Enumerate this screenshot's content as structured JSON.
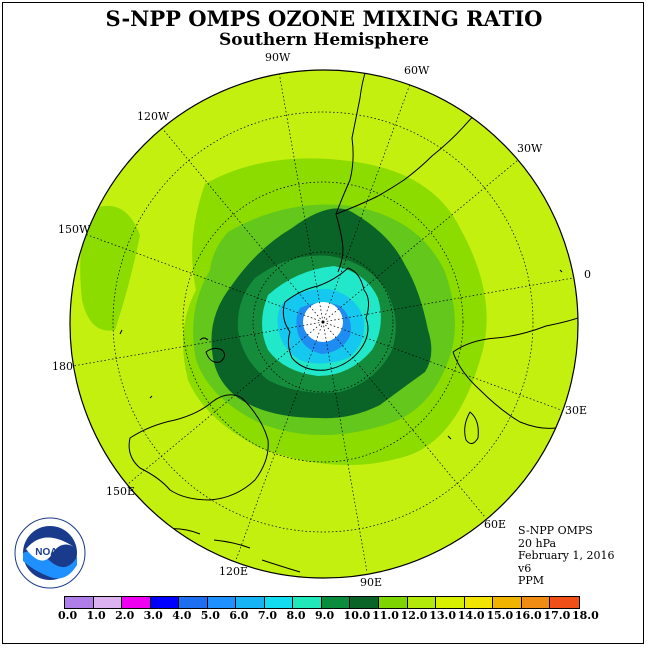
{
  "title": "S-NPP OMPS OZONE MIXING RATIO",
  "subtitle": "Southern Hemisphere",
  "longitude_labels": [
    "90W",
    "60W",
    "30W",
    "0",
    "30E",
    "60E",
    "90E",
    "120E",
    "150E",
    "180",
    "150W",
    "120W"
  ],
  "info": {
    "instrument": "S-NPP OMPS",
    "level": "20 hPa",
    "date": "February 1, 2016",
    "version": "v6",
    "units": "PPM"
  },
  "logo": {
    "text": "NOAA",
    "icon": "noaa-logo-icon"
  },
  "colorbar": {
    "ticks": [
      "0.0",
      "1.0",
      "2.0",
      "3.0",
      "4.0",
      "5.0",
      "6.0",
      "7.0",
      "8.0",
      "9.0",
      "10.0",
      "11.0",
      "12.0",
      "13.0",
      "14.0",
      "15.0",
      "16.0",
      "17.0",
      "18.0"
    ],
    "colors": [
      "#b07ee8",
      "#dcb3f0",
      "#f000f0",
      "#0000ff",
      "#1e6ef0",
      "#1e90ff",
      "#16b4f4",
      "#14dcf0",
      "#20e8b8",
      "#0a8c3c",
      "#0a6428",
      "#7ed400",
      "#b2e80a",
      "#d8f000",
      "#f0e400",
      "#f0b400",
      "#f08c14",
      "#f05018",
      "#e00000",
      "#8b5a3c"
    ],
    "colors_note": ""
  },
  "map_colors": {
    "c12": "#c4f010",
    "c11": "#8cdc00",
    "c10": "#64c81c",
    "c9": "#148c3c",
    "c8": "#0a6428",
    "c7": "#20e8c8",
    "c6": "#14c8f0",
    "c5": "#1e8cf0"
  }
}
